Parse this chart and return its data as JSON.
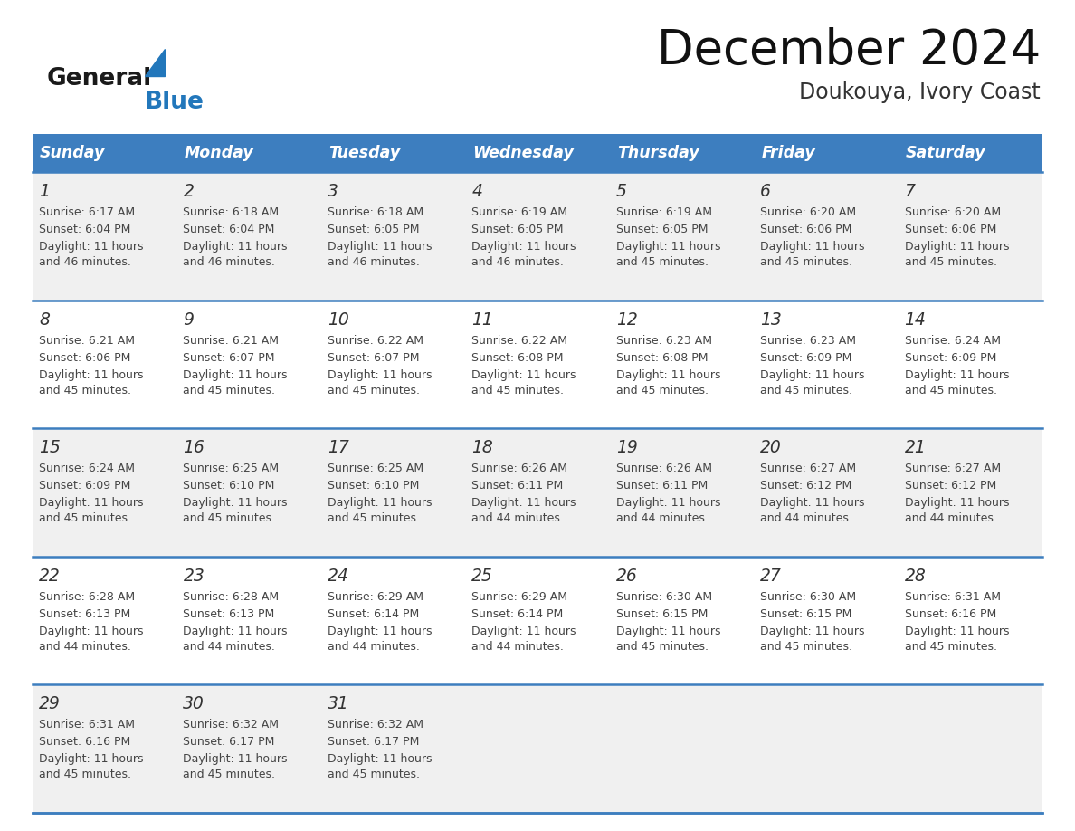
{
  "title": "December 2024",
  "subtitle": "Doukouya, Ivory Coast",
  "header_color": "#3d7ebf",
  "header_text_color": "#ffffff",
  "days_of_week": [
    "Sunday",
    "Monday",
    "Tuesday",
    "Wednesday",
    "Thursday",
    "Friday",
    "Saturday"
  ],
  "background_color": "#ffffff",
  "cell_bg_even": "#f0f0f0",
  "cell_bg_odd": "#ffffff",
  "row_line_color": "#3d7ebf",
  "calendar_data": [
    [
      {
        "day": 1,
        "sunrise": "6:17 AM",
        "sunset": "6:04 PM",
        "daylight": "11 hours\nand 46 minutes."
      },
      {
        "day": 2,
        "sunrise": "6:18 AM",
        "sunset": "6:04 PM",
        "daylight": "11 hours\nand 46 minutes."
      },
      {
        "day": 3,
        "sunrise": "6:18 AM",
        "sunset": "6:05 PM",
        "daylight": "11 hours\nand 46 minutes."
      },
      {
        "day": 4,
        "sunrise": "6:19 AM",
        "sunset": "6:05 PM",
        "daylight": "11 hours\nand 46 minutes."
      },
      {
        "day": 5,
        "sunrise": "6:19 AM",
        "sunset": "6:05 PM",
        "daylight": "11 hours\nand 45 minutes."
      },
      {
        "day": 6,
        "sunrise": "6:20 AM",
        "sunset": "6:06 PM",
        "daylight": "11 hours\nand 45 minutes."
      },
      {
        "day": 7,
        "sunrise": "6:20 AM",
        "sunset": "6:06 PM",
        "daylight": "11 hours\nand 45 minutes."
      }
    ],
    [
      {
        "day": 8,
        "sunrise": "6:21 AM",
        "sunset": "6:06 PM",
        "daylight": "11 hours\nand 45 minutes."
      },
      {
        "day": 9,
        "sunrise": "6:21 AM",
        "sunset": "6:07 PM",
        "daylight": "11 hours\nand 45 minutes."
      },
      {
        "day": 10,
        "sunrise": "6:22 AM",
        "sunset": "6:07 PM",
        "daylight": "11 hours\nand 45 minutes."
      },
      {
        "day": 11,
        "sunrise": "6:22 AM",
        "sunset": "6:08 PM",
        "daylight": "11 hours\nand 45 minutes."
      },
      {
        "day": 12,
        "sunrise": "6:23 AM",
        "sunset": "6:08 PM",
        "daylight": "11 hours\nand 45 minutes."
      },
      {
        "day": 13,
        "sunrise": "6:23 AM",
        "sunset": "6:09 PM",
        "daylight": "11 hours\nand 45 minutes."
      },
      {
        "day": 14,
        "sunrise": "6:24 AM",
        "sunset": "6:09 PM",
        "daylight": "11 hours\nand 45 minutes."
      }
    ],
    [
      {
        "day": 15,
        "sunrise": "6:24 AM",
        "sunset": "6:09 PM",
        "daylight": "11 hours\nand 45 minutes."
      },
      {
        "day": 16,
        "sunrise": "6:25 AM",
        "sunset": "6:10 PM",
        "daylight": "11 hours\nand 45 minutes."
      },
      {
        "day": 17,
        "sunrise": "6:25 AM",
        "sunset": "6:10 PM",
        "daylight": "11 hours\nand 45 minutes."
      },
      {
        "day": 18,
        "sunrise": "6:26 AM",
        "sunset": "6:11 PM",
        "daylight": "11 hours\nand 44 minutes."
      },
      {
        "day": 19,
        "sunrise": "6:26 AM",
        "sunset": "6:11 PM",
        "daylight": "11 hours\nand 44 minutes."
      },
      {
        "day": 20,
        "sunrise": "6:27 AM",
        "sunset": "6:12 PM",
        "daylight": "11 hours\nand 44 minutes."
      },
      {
        "day": 21,
        "sunrise": "6:27 AM",
        "sunset": "6:12 PM",
        "daylight": "11 hours\nand 44 minutes."
      }
    ],
    [
      {
        "day": 22,
        "sunrise": "6:28 AM",
        "sunset": "6:13 PM",
        "daylight": "11 hours\nand 44 minutes."
      },
      {
        "day": 23,
        "sunrise": "6:28 AM",
        "sunset": "6:13 PM",
        "daylight": "11 hours\nand 44 minutes."
      },
      {
        "day": 24,
        "sunrise": "6:29 AM",
        "sunset": "6:14 PM",
        "daylight": "11 hours\nand 44 minutes."
      },
      {
        "day": 25,
        "sunrise": "6:29 AM",
        "sunset": "6:14 PM",
        "daylight": "11 hours\nand 44 minutes."
      },
      {
        "day": 26,
        "sunrise": "6:30 AM",
        "sunset": "6:15 PM",
        "daylight": "11 hours\nand 45 minutes."
      },
      {
        "day": 27,
        "sunrise": "6:30 AM",
        "sunset": "6:15 PM",
        "daylight": "11 hours\nand 45 minutes."
      },
      {
        "day": 28,
        "sunrise": "6:31 AM",
        "sunset": "6:16 PM",
        "daylight": "11 hours\nand 45 minutes."
      }
    ],
    [
      {
        "day": 29,
        "sunrise": "6:31 AM",
        "sunset": "6:16 PM",
        "daylight": "11 hours\nand 45 minutes."
      },
      {
        "day": 30,
        "sunrise": "6:32 AM",
        "sunset": "6:17 PM",
        "daylight": "11 hours\nand 45 minutes."
      },
      {
        "day": 31,
        "sunrise": "6:32 AM",
        "sunset": "6:17 PM",
        "daylight": "11 hours\nand 45 minutes."
      },
      null,
      null,
      null,
      null
    ]
  ],
  "logo_color_general": "#1a1a1a",
  "logo_color_blue": "#2277bb",
  "logo_color_triangle": "#2277bb"
}
